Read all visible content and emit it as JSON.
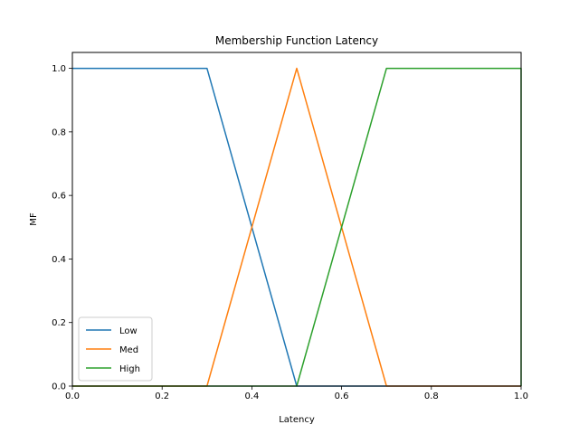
{
  "chart_data": {
    "type": "line",
    "title": "Membership Function Latency",
    "xlabel": "Latency",
    "ylabel": "MF",
    "xlim": [
      0,
      1
    ],
    "ylim": [
      0,
      1.05
    ],
    "xticks": [
      "0.0",
      "0.2",
      "0.4",
      "0.6",
      "0.8",
      "1.0"
    ],
    "yticks": [
      "0.0",
      "0.2",
      "0.4",
      "0.6",
      "0.8",
      "1.0"
    ],
    "grid": false,
    "legend_position": "lower-left",
    "series": [
      {
        "name": "Low",
        "color": "#1f77b4",
        "x": [
          0.0,
          0.3,
          0.5,
          1.0
        ],
        "y": [
          1.0,
          1.0,
          0.0,
          0.0
        ]
      },
      {
        "name": "Med",
        "color": "#ff7f0e",
        "x": [
          0.0,
          0.3,
          0.5,
          0.7,
          1.0
        ],
        "y": [
          0.0,
          0.0,
          1.0,
          0.0,
          0.0
        ]
      },
      {
        "name": "High",
        "color": "#2ca02c",
        "x": [
          0.0,
          0.5,
          0.7,
          1.0,
          1.0
        ],
        "y": [
          0.0,
          0.0,
          1.0,
          1.0,
          0.0
        ]
      }
    ]
  }
}
